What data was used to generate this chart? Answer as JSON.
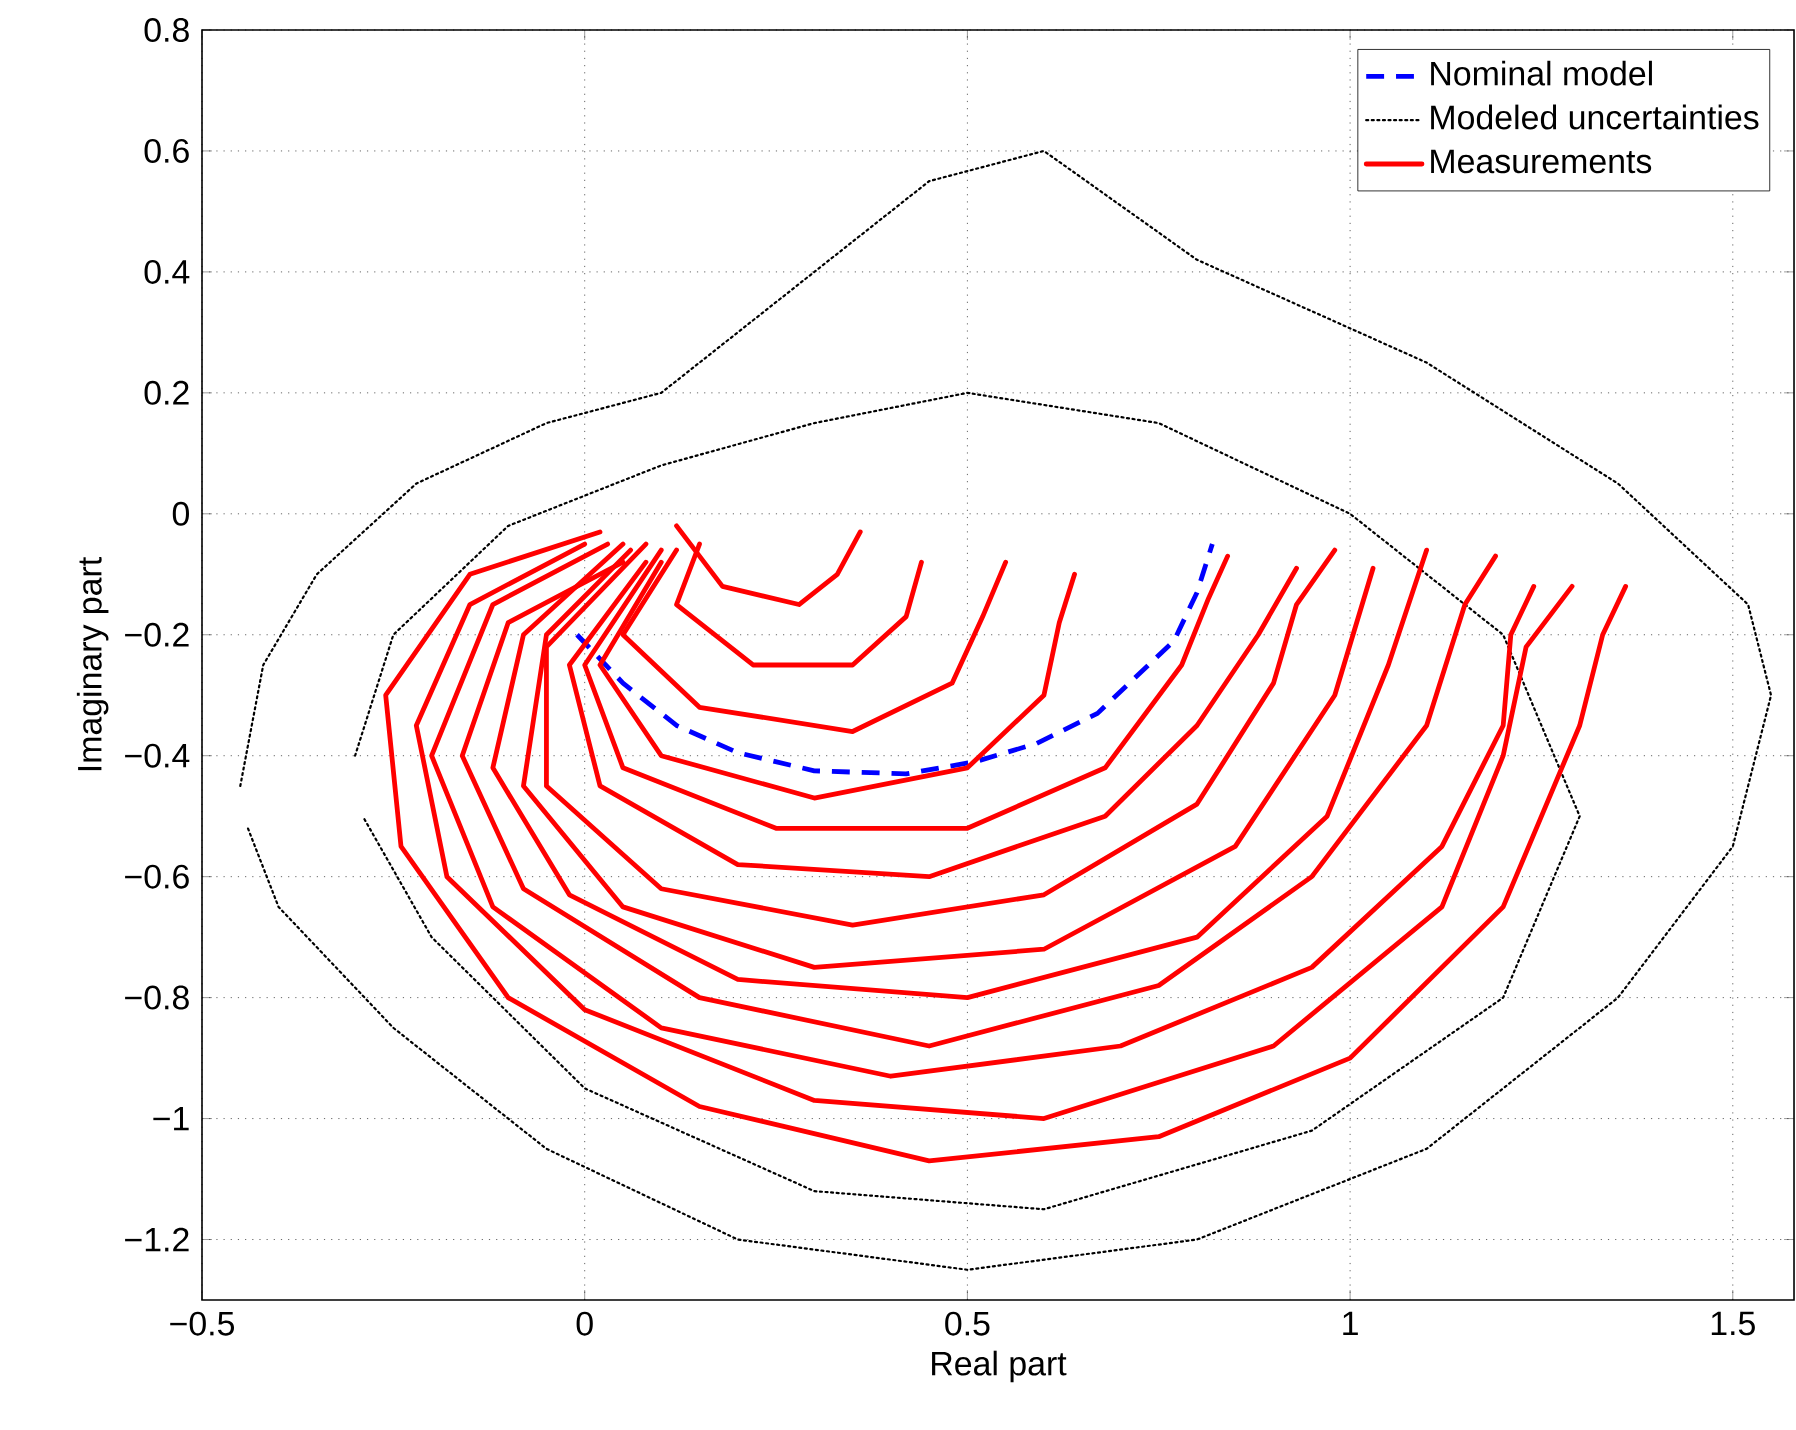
{
  "chart_data": {
    "type": "line",
    "xlabel": "Real part",
    "ylabel": "Imaginary part",
    "xlim": [
      -0.5,
      1.58
    ],
    "ylim": [
      -1.3,
      0.8
    ],
    "xticks": [
      {
        "value": -0.5,
        "label": "−0.5"
      },
      0,
      0.5,
      1,
      1.5
    ],
    "yticks": [
      {
        "value": -1.2,
        "label": "−1.2"
      },
      {
        "value": -1,
        "label": "−1"
      },
      {
        "value": -0.8,
        "label": "−0.8"
      },
      {
        "value": -0.6,
        "label": "−0.6"
      },
      {
        "value": -0.4,
        "label": "−0.4"
      },
      {
        "value": -0.2,
        "label": "−0.2"
      },
      0,
      0.2,
      0.4,
      0.6,
      0.8
    ],
    "grid": true,
    "legend": "top right",
    "series": [
      {
        "name": "Nominal model",
        "color": "#0000ff",
        "line_style": "dashed",
        "x": [
          -0.01,
          0.05,
          0.12,
          0.2,
          0.3,
          0.42,
          0.51,
          0.59,
          0.67,
          0.72,
          0.77,
          0.8,
          0.82
        ],
        "values": [
          -0.2,
          -0.28,
          -0.35,
          -0.395,
          -0.425,
          -0.43,
          -0.41,
          -0.38,
          -0.33,
          -0.27,
          -0.21,
          -0.13,
          -0.05
        ]
      },
      {
        "name": "Modeled uncertainties",
        "color": "#000000",
        "line_style": "dotted",
        "x": [
          -0.45,
          -0.42,
          -0.35,
          -0.22,
          -0.05,
          0.1,
          0.2,
          0.3,
          0.45,
          0.6,
          0.8,
          1.1,
          1.35,
          1.52,
          1.55,
          1.5,
          1.35,
          1.1,
          0.8,
          0.5,
          0.2,
          -0.05,
          -0.25,
          -0.4,
          -0.44
        ],
        "values": [
          -0.45,
          -0.25,
          -0.1,
          0.05,
          0.15,
          0.2,
          0.3,
          0.4,
          0.55,
          0.6,
          0.42,
          0.25,
          0.05,
          -0.15,
          -0.3,
          -0.55,
          -0.8,
          -1.05,
          -1.2,
          -1.25,
          -1.2,
          -1.05,
          -0.85,
          -0.65,
          -0.52
        ]
      },
      {
        "color": "#000000",
        "line_style": "dotted",
        "x": [
          -0.3,
          -0.25,
          -0.1,
          0.1,
          0.3,
          0.5,
          0.75,
          1.0,
          1.2,
          1.3,
          1.2,
          0.95,
          0.6,
          0.3,
          0.0,
          -0.2,
          -0.29
        ],
        "values": [
          -0.4,
          -0.2,
          -0.02,
          0.08,
          0.15,
          0.2,
          0.15,
          0.0,
          -0.2,
          -0.5,
          -0.8,
          -1.02,
          -1.15,
          -1.12,
          -0.95,
          -0.7,
          -0.5
        ]
      },
      {
        "name": "Measurements",
        "color": "#ff0000",
        "line_style": "solid",
        "x": [
          0.02,
          -0.15,
          -0.26,
          -0.24,
          -0.1,
          0.15,
          0.45,
          0.75,
          1.0,
          1.2,
          1.3,
          1.33,
          1.36
        ],
        "values": [
          -0.03,
          -0.1,
          -0.3,
          -0.55,
          -0.8,
          -0.98,
          -1.07,
          -1.03,
          -0.9,
          -0.65,
          -0.35,
          -0.2,
          -0.12
        ]
      },
      {
        "color": "#ff0000",
        "line_style": "solid",
        "x": [
          0.0,
          -0.15,
          -0.22,
          -0.18,
          0.0,
          0.3,
          0.6,
          0.9,
          1.12,
          1.2,
          1.23,
          1.29
        ],
        "values": [
          -0.05,
          -0.15,
          -0.35,
          -0.6,
          -0.82,
          -0.97,
          -1.0,
          -0.88,
          -0.65,
          -0.4,
          -0.22,
          -0.12
        ]
      },
      {
        "color": "#ff0000",
        "line_style": "solid",
        "x": [
          0.03,
          -0.12,
          -0.2,
          -0.12,
          0.1,
          0.4,
          0.7,
          0.95,
          1.12,
          1.2,
          1.21,
          1.24
        ],
        "values": [
          -0.05,
          -0.15,
          -0.4,
          -0.65,
          -0.85,
          -0.93,
          -0.88,
          -0.75,
          -0.55,
          -0.35,
          -0.2,
          -0.12
        ]
      },
      {
        "color": "#ff0000",
        "line_style": "solid",
        "x": [
          0.05,
          -0.1,
          -0.16,
          -0.08,
          0.15,
          0.45,
          0.75,
          0.95,
          1.1,
          1.15,
          1.19
        ],
        "values": [
          -0.08,
          -0.18,
          -0.4,
          -0.62,
          -0.8,
          -0.88,
          -0.78,
          -0.6,
          -0.35,
          -0.15,
          -0.07
        ]
      },
      {
        "color": "#ff0000",
        "line_style": "solid",
        "x": [
          0.05,
          -0.08,
          -0.12,
          -0.02,
          0.2,
          0.5,
          0.8,
          0.97,
          1.05,
          1.1
        ],
        "values": [
          -0.05,
          -0.2,
          -0.42,
          -0.63,
          -0.77,
          -0.8,
          -0.7,
          -0.5,
          -0.25,
          -0.06
        ]
      },
      {
        "color": "#ff0000",
        "line_style": "solid",
        "x": [
          0.06,
          -0.05,
          -0.08,
          0.05,
          0.3,
          0.6,
          0.85,
          0.98,
          1.03
        ],
        "values": [
          -0.06,
          -0.2,
          -0.45,
          -0.65,
          -0.75,
          -0.72,
          -0.55,
          -0.3,
          -0.09
        ]
      },
      {
        "color": "#ff0000",
        "line_style": "solid",
        "x": [
          0.08,
          -0.05,
          -0.05,
          0.1,
          0.35,
          0.6,
          0.8,
          0.9,
          0.93,
          0.98
        ],
        "values": [
          -0.05,
          -0.22,
          -0.45,
          -0.62,
          -0.68,
          -0.63,
          -0.48,
          -0.28,
          -0.15,
          -0.06
        ]
      },
      {
        "color": "#ff0000",
        "line_style": "solid",
        "x": [
          0.08,
          -0.02,
          0.02,
          0.2,
          0.45,
          0.68,
          0.8,
          0.88,
          0.93
        ],
        "values": [
          -0.08,
          -0.25,
          -0.45,
          -0.58,
          -0.6,
          -0.5,
          -0.35,
          -0.2,
          -0.09
        ]
      },
      {
        "color": "#ff0000",
        "line_style": "solid",
        "x": [
          0.1,
          0.0,
          0.05,
          0.25,
          0.5,
          0.68,
          0.78,
          0.815,
          0.84
        ],
        "values": [
          -0.06,
          -0.25,
          -0.42,
          -0.52,
          -0.52,
          -0.42,
          -0.25,
          -0.14,
          -0.07
        ]
      },
      {
        "color": "#ff0000",
        "line_style": "solid",
        "x": [
          0.1,
          0.02,
          0.1,
          0.3,
          0.5,
          0.6,
          0.62,
          0.64
        ],
        "values": [
          -0.08,
          -0.25,
          -0.4,
          -0.47,
          -0.42,
          -0.3,
          -0.18,
          -0.1
        ]
      },
      {
        "color": "#ff0000",
        "line_style": "solid",
        "x": [
          0.12,
          0.05,
          0.15,
          0.35,
          0.48,
          0.52,
          0.55
        ],
        "values": [
          -0.06,
          -0.2,
          -0.32,
          -0.36,
          -0.28,
          -0.17,
          -0.08
        ]
      },
      {
        "color": "#ff0000",
        "line_style": "solid",
        "x": [
          0.15,
          0.12,
          0.22,
          0.35,
          0.42,
          0.44
        ],
        "values": [
          -0.05,
          -0.15,
          -0.25,
          -0.25,
          -0.17,
          -0.08
        ]
      },
      {
        "color": "#ff0000",
        "line_style": "solid",
        "x": [
          0.12,
          0.18,
          0.28,
          0.33,
          0.36
        ],
        "values": [
          -0.02,
          -0.12,
          -0.15,
          -0.1,
          -0.03
        ]
      }
    ]
  }
}
